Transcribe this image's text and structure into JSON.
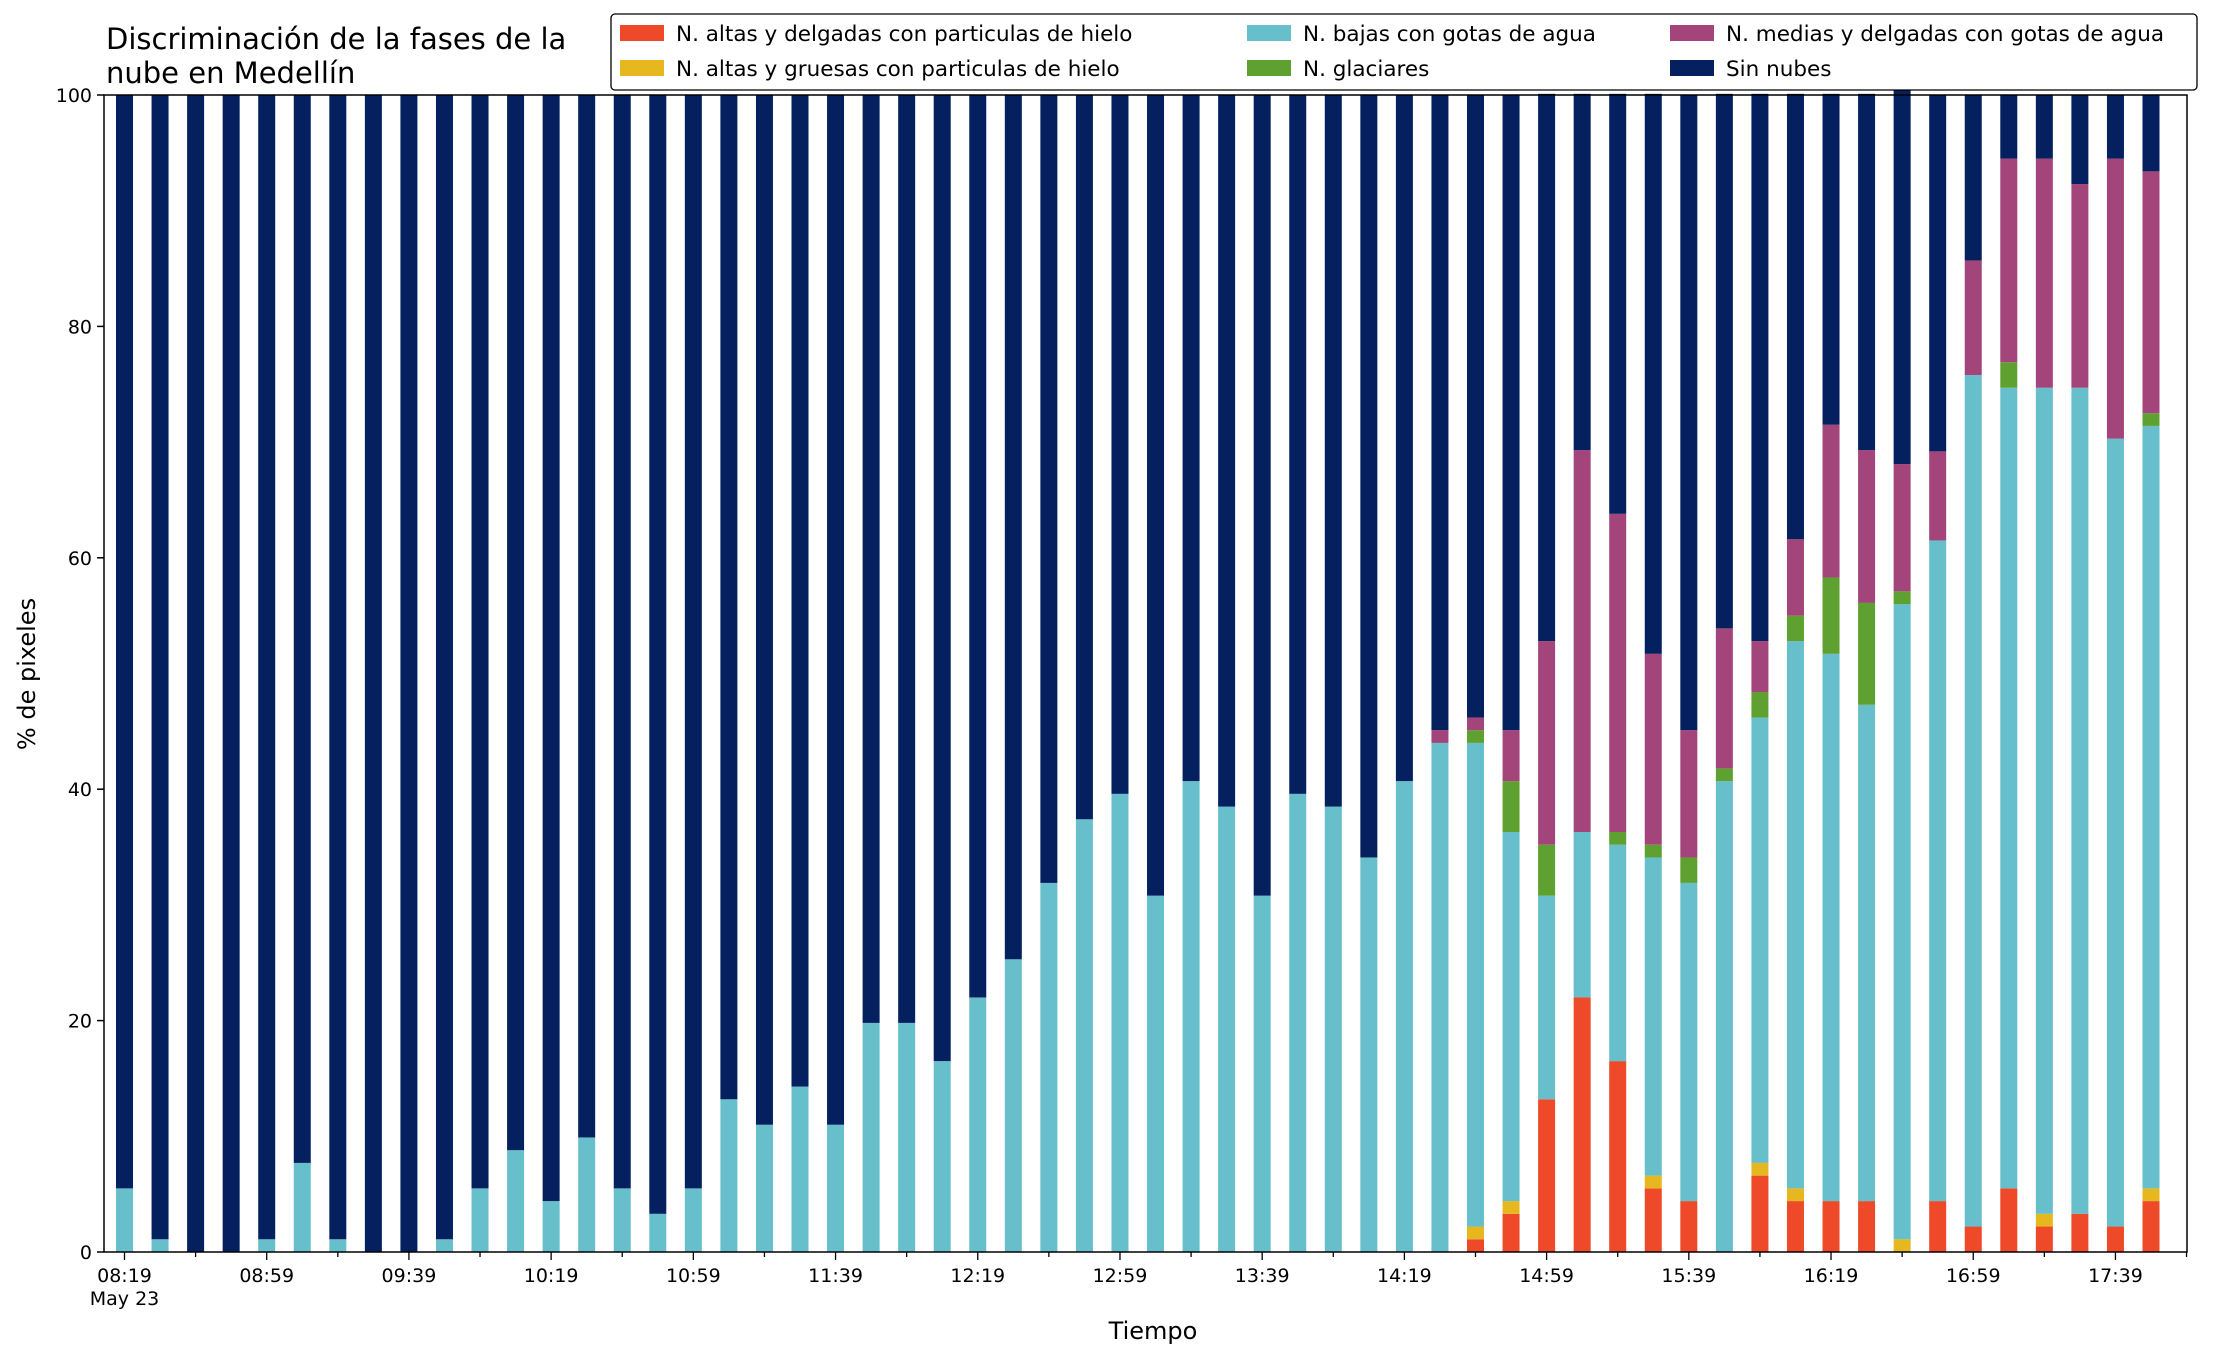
{
  "chart_data": {
    "type": "bar",
    "stacked": true,
    "title_lines": [
      "Discriminación de la fases de la",
      "nube en Medellín"
    ],
    "xlabel": "Tiempo",
    "ylabel": "% de pixeles",
    "ylim": [
      0,
      100
    ],
    "yticks": [
      "0",
      "20",
      "40",
      "60",
      "80",
      "100"
    ],
    "grid": false,
    "legend_position": "top-right",
    "x_tick_labels": [
      "08:19",
      "08:59",
      "09:39",
      "10:19",
      "10:59",
      "11:39",
      "12:19",
      "12:59",
      "13:39",
      "14:19",
      "14:59",
      "15:39",
      "16:19",
      "16:59",
      "17:39"
    ],
    "x_date_label": "May 23",
    "series": [
      {
        "name": "N. altas y delgadas con particulas de hielo",
        "color": "#ee4a2a",
        "values": [
          0,
          0,
          0,
          0,
          0,
          0,
          0,
          0,
          0,
          0,
          0,
          0,
          0,
          0,
          0,
          0,
          0,
          0,
          0,
          0,
          0,
          0,
          0,
          0,
          0,
          0,
          0,
          0,
          0,
          0,
          0,
          0,
          0,
          0,
          0,
          0,
          0,
          0,
          1.1,
          3.3,
          13.2,
          22.0,
          16.5,
          5.5,
          4.4,
          0,
          6.6,
          4.4,
          4.4,
          4.4,
          0,
          4.4,
          2.2,
          5.5,
          2.2,
          3.3,
          2.2,
          4.4
        ]
      },
      {
        "name": "N. altas y gruesas con particulas de hielo",
        "color": "#e6b71e",
        "values": [
          0,
          0,
          0,
          0,
          0,
          0,
          0,
          0,
          0,
          0,
          0,
          0,
          0,
          0,
          0,
          0,
          0,
          0,
          0,
          0,
          0,
          0,
          0,
          0,
          0,
          0,
          0,
          0,
          0,
          0,
          0,
          0,
          0,
          0,
          0,
          0,
          0,
          0,
          1.1,
          1.1,
          0,
          0,
          0,
          1.1,
          0,
          0,
          1.1,
          1.1,
          0,
          0,
          1.1,
          0,
          0,
          0,
          1.1,
          0,
          0,
          1.1
        ]
      },
      {
        "name": "N. bajas con gotas de agua",
        "color": "#66bfcb",
        "values": [
          5.5,
          1.1,
          0,
          0,
          1.1,
          7.7,
          1.1,
          0,
          0,
          1.1,
          5.5,
          8.8,
          4.4,
          9.9,
          5.5,
          3.3,
          5.5,
          13.2,
          11.0,
          14.3,
          11.0,
          19.8,
          19.8,
          16.5,
          22.0,
          25.3,
          31.9,
          37.4,
          39.6,
          30.8,
          40.7,
          38.5,
          30.8,
          39.6,
          38.5,
          34.1,
          40.7,
          44.0,
          41.8,
          31.9,
          17.6,
          14.3,
          18.7,
          27.5,
          27.5,
          40.7,
          38.5,
          47.3,
          47.3,
          42.9,
          54.9,
          57.1,
          73.6,
          69.2,
          71.4,
          71.4,
          68.1,
          65.9
        ]
      },
      {
        "name": "N. glaciares",
        "color": "#5ea130",
        "values": [
          0,
          0,
          0,
          0,
          0,
          0,
          0,
          0,
          0,
          0,
          0,
          0,
          0,
          0,
          0,
          0,
          0,
          0,
          0,
          0,
          0,
          0,
          0,
          0,
          0,
          0,
          0,
          0,
          0,
          0,
          0,
          0,
          0,
          0,
          0,
          0,
          0,
          0,
          1.1,
          4.4,
          4.4,
          0,
          1.1,
          1.1,
          2.2,
          1.1,
          2.2,
          2.2,
          6.6,
          8.8,
          1.1,
          0,
          0,
          2.2,
          0,
          0,
          0,
          1.1
        ]
      },
      {
        "name": "N. medias y delgadas con gotas de agua",
        "color": "#a3457a",
        "values": [
          0,
          0,
          0,
          0,
          0,
          0,
          0,
          0,
          0,
          0,
          0,
          0,
          0,
          0,
          0,
          0,
          0,
          0,
          0,
          0,
          0,
          0,
          0,
          0,
          0,
          0,
          0,
          0,
          0,
          0,
          0,
          0,
          0,
          0,
          0,
          0,
          0,
          1.1,
          1.1,
          4.4,
          17.6,
          33.0,
          27.5,
          16.5,
          11.0,
          12.1,
          4.4,
          6.6,
          13.2,
          13.2,
          11.0,
          7.7,
          9.9,
          17.6,
          19.8,
          17.6,
          24.2,
          20.9
        ]
      },
      {
        "name": "Sin nubes",
        "color": "#04205f",
        "values": [
          94.5,
          98.9,
          100,
          100,
          98.9,
          92.3,
          98.9,
          100,
          100,
          98.9,
          94.5,
          91.2,
          95.6,
          90.1,
          94.5,
          96.7,
          94.5,
          86.8,
          89.0,
          85.7,
          89.0,
          80.2,
          80.2,
          83.5,
          78.0,
          74.7,
          68.1,
          62.6,
          60.4,
          69.2,
          59.3,
          61.5,
          69.2,
          60.4,
          61.5,
          65.9,
          59.3,
          54.9,
          53.8,
          54.9,
          47.3,
          30.8,
          36.3,
          48.4,
          54.9,
          46.2,
          47.3,
          38.5,
          28.6,
          30.8,
          33.0,
          30.8,
          14.3,
          5.5,
          5.5,
          7.7,
          5.5,
          6.6
        ]
      }
    ]
  }
}
